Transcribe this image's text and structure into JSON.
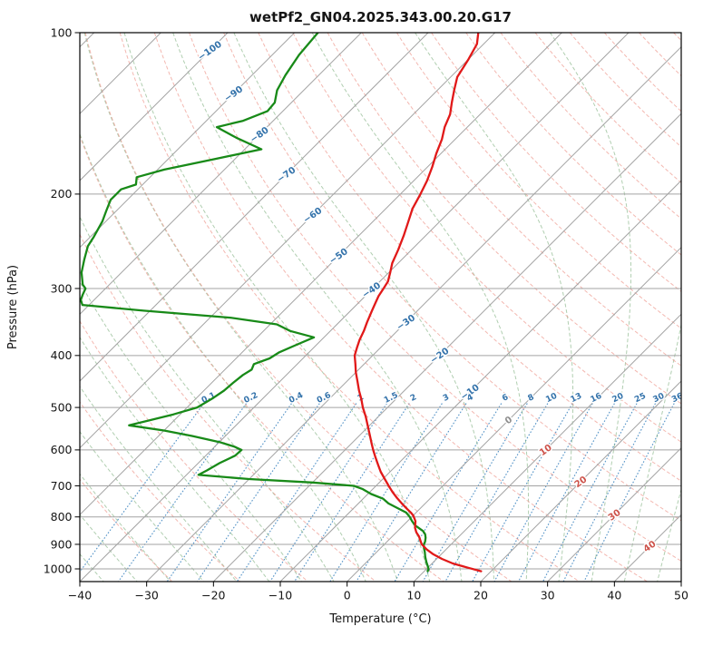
{
  "chart_data": {
    "type": "skewt",
    "title": "wetPf2_GN04.2025.343.00.20.G17",
    "xlabel": "Temperature (°C)",
    "ylabel": "Pressure (hPa)",
    "x_range": [
      -40,
      50
    ],
    "x_ticks": [
      -40,
      -30,
      -20,
      -10,
      0,
      10,
      20,
      30,
      40,
      50
    ],
    "p_ticks": [
      100,
      200,
      300,
      400,
      500,
      600,
      700,
      800,
      900,
      1000
    ],
    "p_top": 100,
    "p_bottom": 1056,
    "isotherms": {
      "start": -150,
      "end": 50,
      "step": 10
    },
    "dry_adiabats": {
      "start": -30,
      "end": 190,
      "step": 10
    },
    "moist_adiabats": {
      "start": -40,
      "end": 45,
      "step": 5
    },
    "mixing_ratios": {
      "values": [
        0.1,
        0.2,
        0.4,
        0.6,
        1,
        1.5,
        2,
        3,
        4,
        6,
        8,
        10,
        13,
        16,
        20,
        25,
        30,
        36
      ],
      "label_pressure": 479,
      "top_pressure": 492
    },
    "isotherm_labels": [
      {
        "t": -100,
        "p": 108
      },
      {
        "t": -90,
        "p": 130
      },
      {
        "t": -80,
        "p": 155
      },
      {
        "t": -70,
        "p": 184
      },
      {
        "t": -60,
        "p": 219
      },
      {
        "t": -50,
        "p": 261
      },
      {
        "t": -40,
        "p": 302
      },
      {
        "t": -30,
        "p": 347
      },
      {
        "t": -20,
        "p": 400
      },
      {
        "t": -10,
        "p": 468
      },
      {
        "t": 0,
        "p": 528
      },
      {
        "t": 10,
        "p": 600
      },
      {
        "t": 20,
        "p": 688
      },
      {
        "t": 30,
        "p": 793
      },
      {
        "t": 40,
        "p": 908
      }
    ],
    "temperature_profile": [
      [
        100,
        -62.5
      ],
      [
        105,
        -61
      ],
      [
        112,
        -60
      ],
      [
        121,
        -59
      ],
      [
        128,
        -57.5
      ],
      [
        135,
        -56
      ],
      [
        142,
        -54.5
      ],
      [
        150,
        -53.4
      ],
      [
        158,
        -52
      ],
      [
        168,
        -50.7
      ],
      [
        178,
        -49.3
      ],
      [
        189,
        -48
      ],
      [
        200,
        -47
      ],
      [
        213,
        -46
      ],
      [
        226,
        -44.6
      ],
      [
        239,
        -43.3
      ],
      [
        254,
        -42
      ],
      [
        269,
        -40.9
      ],
      [
        280,
        -39.8
      ],
      [
        291,
        -38.8
      ],
      [
        300,
        -38.4
      ],
      [
        310,
        -38
      ],
      [
        320,
        -37.4
      ],
      [
        330,
        -36.8
      ],
      [
        347,
        -35.8
      ],
      [
        360,
        -35
      ],
      [
        374,
        -34.3
      ],
      [
        387,
        -33.5
      ],
      [
        400,
        -32.7
      ],
      [
        415,
        -31.3
      ],
      [
        430,
        -30
      ],
      [
        447,
        -28.4
      ],
      [
        465,
        -26.8
      ],
      [
        482,
        -25.2
      ],
      [
        500,
        -23.7
      ],
      [
        520,
        -21.9
      ],
      [
        540,
        -20.3
      ],
      [
        562,
        -18.6
      ],
      [
        585,
        -16.9
      ],
      [
        600,
        -15.8
      ],
      [
        620,
        -14.3
      ],
      [
        640,
        -12.8
      ],
      [
        659,
        -11.4
      ],
      [
        680,
        -9.7
      ],
      [
        700,
        -8.1
      ],
      [
        719,
        -6.6
      ],
      [
        738,
        -5
      ],
      [
        755,
        -3.5
      ],
      [
        772,
        -2
      ],
      [
        785,
        -0.8
      ],
      [
        795,
        0
      ],
      [
        805,
        0.6
      ],
      [
        815,
        1.2
      ],
      [
        825,
        1.6
      ],
      [
        838,
        2.1
      ],
      [
        855,
        3
      ],
      [
        870,
        4
      ],
      [
        885,
        4.8
      ],
      [
        900,
        5.6
      ],
      [
        920,
        7.1
      ],
      [
        938,
        8.7
      ],
      [
        958,
        10.8
      ],
      [
        977,
        13.1
      ],
      [
        995,
        16
      ],
      [
        1010,
        18.5
      ]
    ],
    "dewpoint_profile": [
      [
        100,
        -86.5
      ],
      [
        110,
        -86
      ],
      [
        120,
        -85
      ],
      [
        128,
        -84
      ],
      [
        135,
        -82.5
      ],
      [
        140,
        -82.3
      ],
      [
        146,
        -84.5
      ],
      [
        150,
        -87.5
      ],
      [
        157,
        -83
      ],
      [
        165,
        -77.5
      ],
      [
        172,
        -83
      ],
      [
        180,
        -89
      ],
      [
        186,
        -92
      ],
      [
        192,
        -91
      ],
      [
        196,
        -92.5
      ],
      [
        205,
        -92.5
      ],
      [
        215,
        -91.5
      ],
      [
        225,
        -90.5
      ],
      [
        240,
        -89.5
      ],
      [
        250,
        -89
      ],
      [
        265,
        -87.5
      ],
      [
        280,
        -86
      ],
      [
        295,
        -84
      ],
      [
        300,
        -83
      ],
      [
        308,
        -82.5
      ],
      [
        315,
        -82
      ],
      [
        322,
        -81
      ],
      [
        330,
        -71
      ],
      [
        340,
        -57
      ],
      [
        350,
        -49
      ],
      [
        360,
        -46
      ],
      [
        370,
        -41.5
      ],
      [
        382,
        -43
      ],
      [
        395,
        -44.5
      ],
      [
        405,
        -45
      ],
      [
        415,
        -46.5
      ],
      [
        425,
        -46
      ],
      [
        435,
        -46.5
      ],
      [
        450,
        -46.8
      ],
      [
        465,
        -47
      ],
      [
        480,
        -47.5
      ],
      [
        500,
        -48.5
      ],
      [
        515,
        -51
      ],
      [
        530,
        -54
      ],
      [
        540,
        -56
      ],
      [
        552,
        -50
      ],
      [
        565,
        -45
      ],
      [
        580,
        -40
      ],
      [
        592,
        -37
      ],
      [
        600,
        -35.5
      ],
      [
        615,
        -35.6
      ],
      [
        635,
        -36.8
      ],
      [
        655,
        -37.6
      ],
      [
        668,
        -38.2
      ],
      [
        680,
        -30
      ],
      [
        690,
        -20
      ],
      [
        700,
        -13.3
      ],
      [
        710,
        -11.5
      ],
      [
        725,
        -9.5
      ],
      [
        740,
        -7
      ],
      [
        755,
        -5.5
      ],
      [
        770,
        -3.5
      ],
      [
        785,
        -1.5
      ],
      [
        800,
        -0.3
      ],
      [
        815,
        0.7
      ],
      [
        830,
        1.8
      ],
      [
        850,
        3.8
      ],
      [
        862,
        4.6
      ],
      [
        875,
        5.2
      ],
      [
        890,
        5.7
      ],
      [
        900,
        5.9
      ],
      [
        915,
        6.5
      ],
      [
        930,
        7.2
      ],
      [
        950,
        8
      ],
      [
        970,
        8.9
      ],
      [
        985,
        9.6
      ],
      [
        1000,
        10.3
      ],
      [
        1010,
        10.5
      ]
    ],
    "colors": {
      "temperature": "#e11919",
      "dewpoint": "#188a18",
      "isotherm": "#a3a3a3",
      "pressure_grid": "#a3a3a3",
      "dry_adiabat": "#ee9a8f",
      "moist_adiabat": "#7cae7c",
      "mixing_ratio": "#3f86c0",
      "cold_label": "#3473ab",
      "warm_label": "#cd524a",
      "zero_label": "#8e8e8e"
    }
  }
}
